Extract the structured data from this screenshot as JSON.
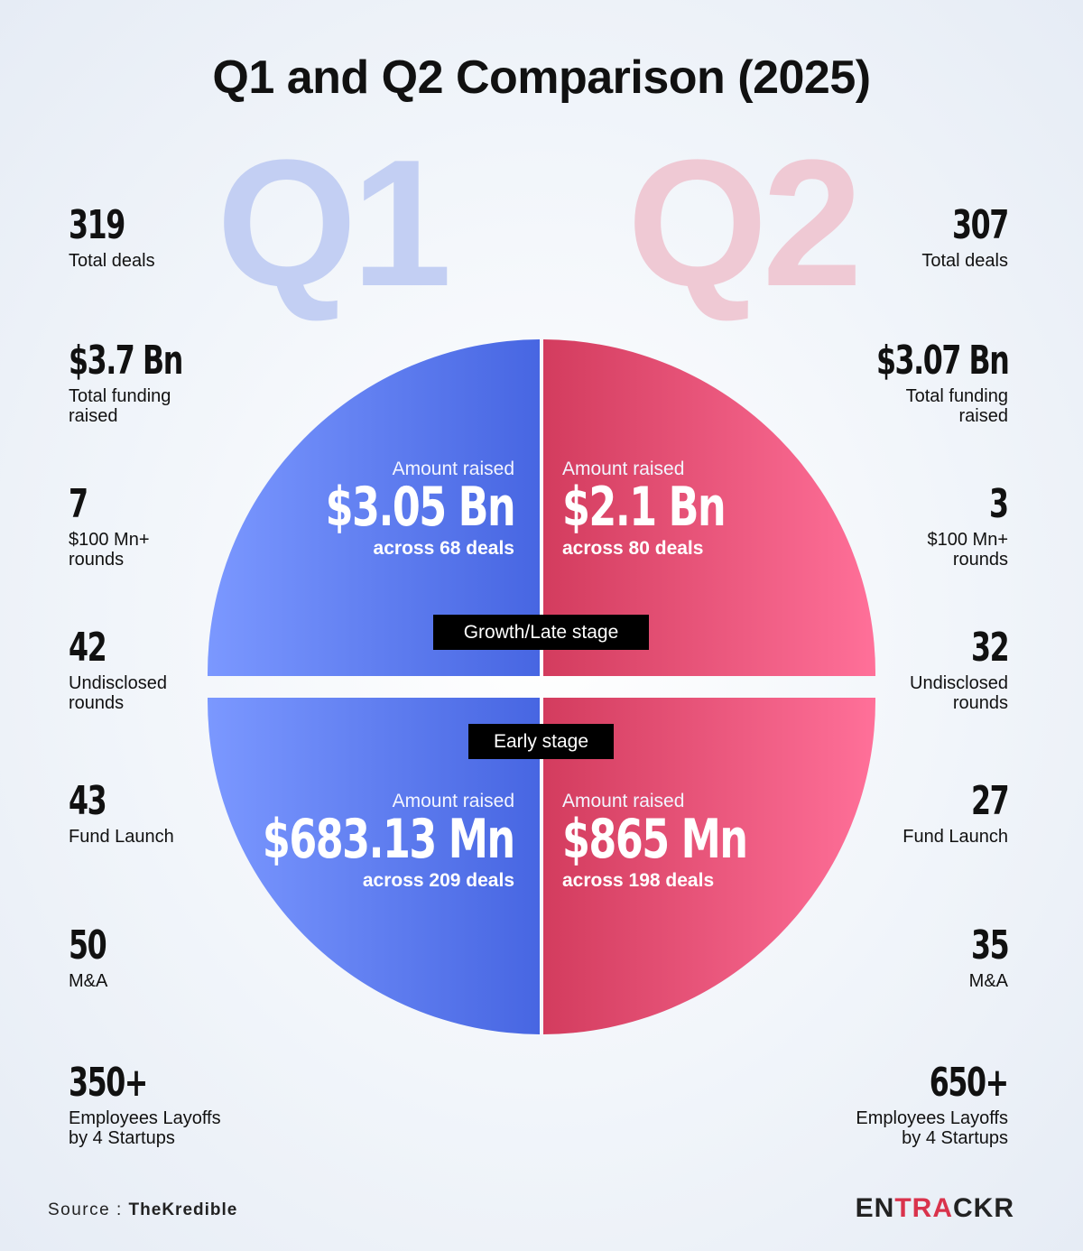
{
  "title": "Q1 and Q2 Comparison (2025)",
  "quarters": {
    "q1": "Q1",
    "q2": "Q2"
  },
  "colors": {
    "q1": "#5677ee",
    "q2": "#e8466f",
    "stage_badge": "#000000",
    "brand_accent": "#d9334c"
  },
  "q1_stats": [
    {
      "value": "319",
      "label": "Total deals"
    },
    {
      "value": "$3.7 Bn",
      "label": "Total funding\nraised"
    },
    {
      "value": "7",
      "label": "$100 Mn+\nrounds"
    },
    {
      "value": "42",
      "label": "Undisclosed\nrounds"
    },
    {
      "value": "43",
      "label": "Fund Launch"
    },
    {
      "value": "50",
      "label": "M&A"
    },
    {
      "value": "350+",
      "label": "Employees Layoffs\nby 4 Startups"
    }
  ],
  "q2_stats": [
    {
      "value": "307",
      "label": "Total deals"
    },
    {
      "value": "$3.07 Bn",
      "label": "Total funding\nraised"
    },
    {
      "value": "3",
      "label": "$100 Mn+\nrounds"
    },
    {
      "value": "32",
      "label": "Undisclosed\nrounds"
    },
    {
      "value": "27",
      "label": "Fund Launch"
    },
    {
      "value": "35",
      "label": "M&A"
    },
    {
      "value": "650+",
      "label": "Employees Layoffs\nby 4 Startups"
    }
  ],
  "stages": {
    "growth": {
      "label": "Growth/Late stage",
      "q1": {
        "caption": "Amount raised",
        "amount": "$3.05 Bn",
        "deals": "across 68 deals"
      },
      "q2": {
        "caption": "Amount raised",
        "amount": "$2.1 Bn",
        "deals": "across 80 deals"
      }
    },
    "early": {
      "label": "Early stage",
      "q1": {
        "caption": "Amount raised",
        "amount": "$683.13 Mn",
        "deals": "across 209 deals"
      },
      "q2": {
        "caption": "Amount raised",
        "amount": "$865 Mn",
        "deals": "across 198 deals"
      }
    }
  },
  "footer": {
    "source_label": "Source :",
    "source_name": "TheKredible",
    "brand_left": "EN",
    "brand_accent": "TRA",
    "brand_right": "CKR"
  }
}
